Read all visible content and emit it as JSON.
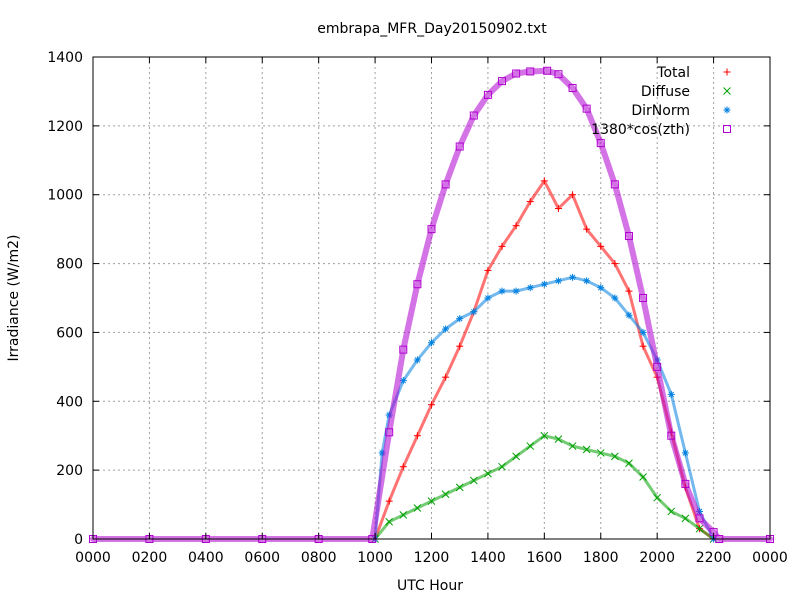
{
  "chart_data": {
    "type": "scatter",
    "title": "embrapa_MFR_Day20150902.txt",
    "xlabel": "UTC Hour",
    "ylabel": "Irradiance (W/m2)",
    "xlim": [
      0,
      24
    ],
    "ylim": [
      0,
      1400
    ],
    "x_ticks": [
      "0000",
      "0200",
      "0400",
      "0600",
      "0800",
      "1000",
      "1200",
      "1400",
      "1600",
      "1800",
      "2000",
      "2200",
      "0000"
    ],
    "y_ticks": [
      0,
      200,
      400,
      600,
      800,
      1000,
      1200,
      1400
    ],
    "grid": true,
    "legend": "top-right",
    "series": [
      {
        "name": "Total",
        "marker": "plus",
        "color": "#ff0000",
        "x": [
          10.0,
          10.5,
          11.0,
          11.5,
          12.0,
          12.5,
          13.0,
          13.5,
          14.0,
          14.5,
          15.0,
          15.5,
          16.0,
          16.5,
          17.0,
          17.5,
          18.0,
          18.5,
          19.0,
          19.5,
          20.0,
          20.5,
          21.0,
          21.5,
          22.0
        ],
        "y": [
          0,
          110,
          210,
          300,
          390,
          470,
          560,
          660,
          780,
          850,
          910,
          980,
          1040,
          960,
          1000,
          900,
          850,
          800,
          720,
          560,
          470,
          310,
          150,
          30,
          0
        ]
      },
      {
        "name": "Diffuse",
        "marker": "cross",
        "color": "#00a000",
        "x": [
          10.0,
          10.5,
          11.0,
          11.5,
          12.0,
          12.5,
          13.0,
          13.5,
          14.0,
          14.5,
          15.0,
          15.5,
          16.0,
          16.5,
          17.0,
          17.5,
          18.0,
          18.5,
          19.0,
          19.5,
          20.0,
          20.5,
          21.0,
          21.5,
          22.0
        ],
        "y": [
          0,
          50,
          70,
          90,
          110,
          130,
          150,
          170,
          190,
          210,
          240,
          270,
          300,
          290,
          270,
          260,
          250,
          240,
          220,
          180,
          120,
          80,
          60,
          30,
          0
        ]
      },
      {
        "name": "DirNorm",
        "marker": "star",
        "color": "#0080e0",
        "x": [
          10.0,
          10.25,
          10.5,
          11.0,
          11.5,
          12.0,
          12.5,
          13.0,
          13.5,
          14.0,
          14.5,
          15.0,
          15.5,
          16.0,
          16.5,
          17.0,
          17.5,
          18.0,
          18.5,
          19.0,
          19.5,
          20.0,
          20.5,
          21.0,
          21.5,
          22.0
        ],
        "y": [
          0,
          250,
          360,
          460,
          520,
          570,
          610,
          640,
          660,
          700,
          720,
          720,
          730,
          740,
          750,
          760,
          750,
          730,
          700,
          650,
          600,
          520,
          420,
          250,
          80,
          0
        ]
      },
      {
        "name": "1380*cos(zth)",
        "marker": "square",
        "color": "#b000d0",
        "x": [
          0,
          2,
          4,
          6,
          8,
          9.9,
          10.5,
          11.0,
          11.5,
          12.0,
          12.5,
          13.0,
          13.5,
          14.0,
          14.5,
          15.0,
          15.5,
          16.1,
          16.5,
          17.0,
          17.5,
          18.0,
          18.5,
          19.0,
          19.5,
          20.0,
          20.5,
          21.0,
          21.5,
          22.0,
          22.2,
          24
        ],
        "y": [
          0,
          0,
          0,
          0,
          0,
          0,
          310,
          550,
          740,
          900,
          1030,
          1140,
          1230,
          1290,
          1330,
          1352,
          1358,
          1360,
          1350,
          1310,
          1250,
          1150,
          1030,
          880,
          700,
          500,
          300,
          160,
          60,
          20,
          0,
          0
        ]
      }
    ]
  }
}
